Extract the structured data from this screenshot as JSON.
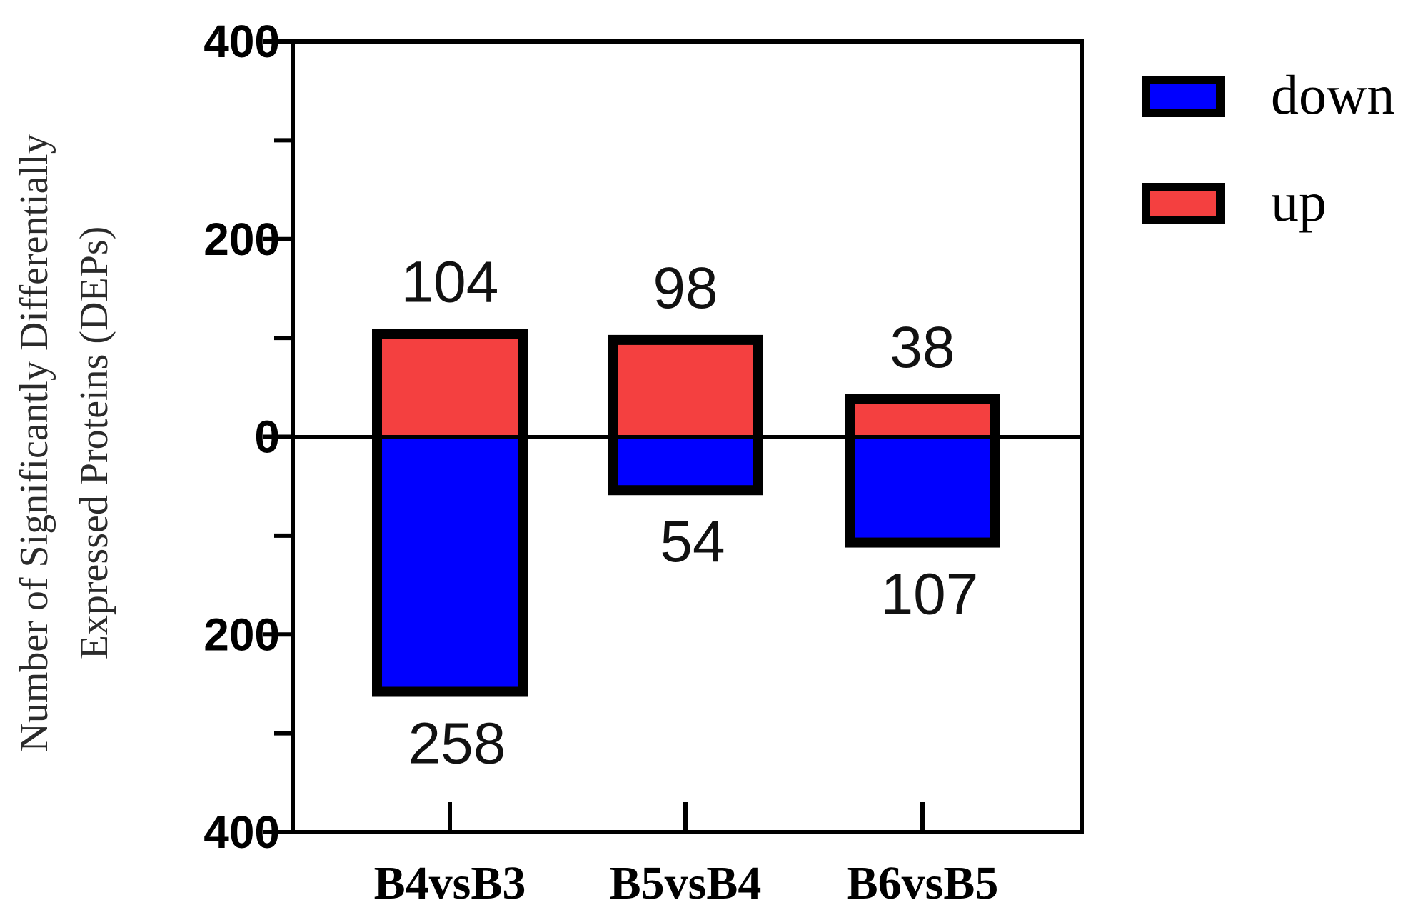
{
  "chart_data": {
    "type": "bar",
    "categories": [
      "B4vsB3",
      "B5vsB4",
      "B6vsB5"
    ],
    "series": [
      {
        "name": "down",
        "values": [
          258,
          54,
          107
        ]
      },
      {
        "name": "up",
        "values": [
          104,
          98,
          38
        ]
      }
    ],
    "value_labels": {
      "up": [
        "104",
        "98",
        "38"
      ],
      "down": [
        "258",
        "54",
        "107"
      ]
    },
    "ylabel_line1": "Number of Significantly Differentially",
    "ylabel_line2": "Expressed Proteins (DEPs)",
    "ylim": [
      -400,
      400
    ],
    "yticks": [
      {
        "value": 400,
        "label": "400"
      },
      {
        "value": 300,
        "label": ""
      },
      {
        "value": 200,
        "label": "200"
      },
      {
        "value": 100,
        "label": ""
      },
      {
        "value": 0,
        "label": "0"
      },
      {
        "value": -100,
        "label": ""
      },
      {
        "value": -200,
        "label": "200"
      },
      {
        "value": -300,
        "label": ""
      },
      {
        "value": -400,
        "label": "400"
      }
    ],
    "legend": [
      {
        "name": "down",
        "color": "#0000FF"
      },
      {
        "name": "up",
        "color": "#F44040"
      }
    ],
    "legend_position": "top-right",
    "colors": {
      "down": "#0000FF",
      "up": "#F44040",
      "outline": "#000000"
    },
    "grid": false
  }
}
